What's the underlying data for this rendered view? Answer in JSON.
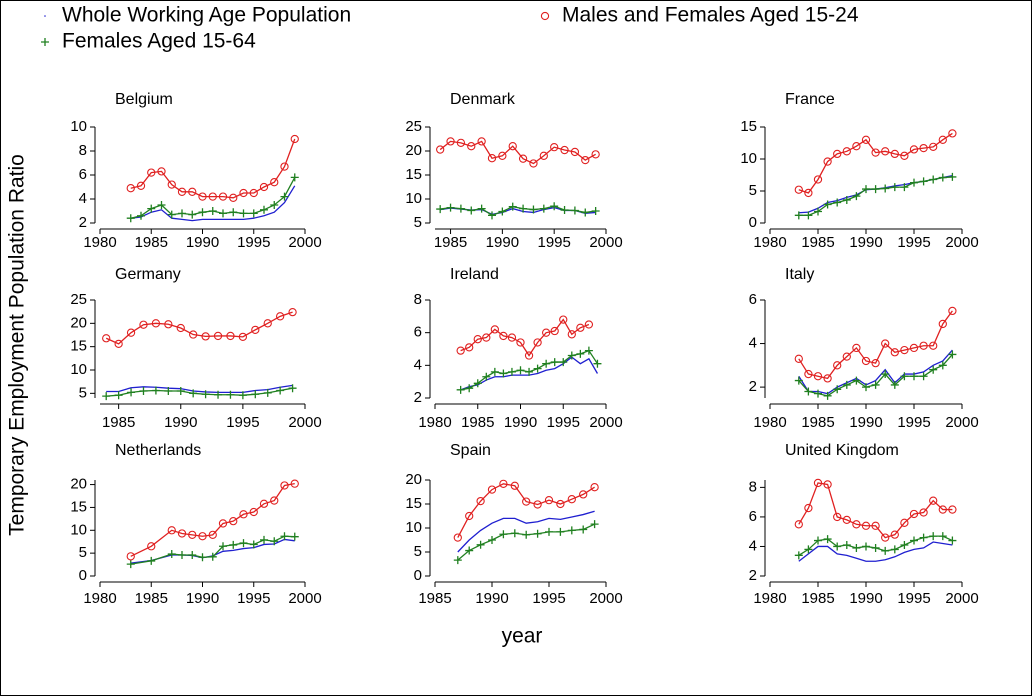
{
  "legend": [
    {
      "name": "Whole Working Age Population",
      "color": "#1f1fd0",
      "marker": "dot"
    },
    {
      "name": "Males and Females Aged 15-24",
      "color": "#e02020",
      "marker": "circle"
    },
    {
      "name": "Females Aged 15-64",
      "color": "#208020",
      "marker": "plus"
    }
  ],
  "ylabel": "Temporary Employment Population Ratio",
  "xlabel": "year",
  "chart_data": [
    {
      "type": "line",
      "title": "Belgium",
      "xlim": [
        1980,
        2000
      ],
      "xticks": [
        1980,
        1985,
        1990,
        1995,
        2000
      ],
      "ylim": [
        2,
        10
      ],
      "yticks": [
        2,
        4,
        6,
        8,
        10
      ],
      "x": [
        1983,
        1984,
        1985,
        1986,
        1987,
        1988,
        1989,
        1990,
        1991,
        1992,
        1993,
        1994,
        1995,
        1996,
        1997,
        1998,
        1999
      ],
      "series": [
        {
          "values": [
            2.4,
            2.5,
            2.9,
            3.1,
            2.4,
            2.3,
            2.2,
            2.3,
            2.3,
            2.3,
            2.3,
            2.3,
            2.4,
            2.6,
            2.9,
            3.7,
            5.1
          ]
        },
        {
          "values": [
            4.9,
            5.1,
            6.2,
            6.3,
            5.2,
            4.6,
            4.6,
            4.2,
            4.2,
            4.2,
            4.1,
            4.5,
            4.5,
            5.0,
            5.4,
            6.7,
            9.0
          ]
        },
        {
          "values": [
            2.4,
            2.6,
            3.2,
            3.5,
            2.7,
            2.8,
            2.7,
            2.9,
            3.0,
            2.8,
            2.9,
            2.8,
            2.8,
            3.1,
            3.5,
            4.2,
            5.8
          ]
        }
      ]
    },
    {
      "type": "line",
      "title": "Denmark",
      "xlim": [
        1983.5,
        2000
      ],
      "xticks": [
        1985,
        1990,
        1995,
        2000
      ],
      "ylim": [
        5,
        25
      ],
      "yticks": [
        5,
        10,
        15,
        20,
        25
      ],
      "x": [
        1984,
        1985,
        1986,
        1987,
        1988,
        1989,
        1990,
        1991,
        1992,
        1993,
        1994,
        1995,
        1996,
        1997,
        1998,
        1999
      ],
      "series": [
        {
          "values": [
            7.8,
            8.1,
            7.9,
            7.7,
            7.8,
            6.8,
            7.2,
            8.0,
            7.4,
            7.2,
            7.8,
            8.2,
            7.6,
            7.6,
            7.0,
            7.2
          ]
        },
        {
          "values": [
            20.3,
            22,
            21.7,
            21,
            22,
            18.5,
            19,
            21,
            18.4,
            17.4,
            19,
            20.8,
            20.2,
            19.8,
            18.1,
            19.3
          ]
        },
        {
          "values": [
            7.9,
            8.2,
            8.0,
            7.6,
            8.0,
            6.6,
            7.4,
            8.4,
            8.0,
            7.8,
            8.0,
            8.5,
            7.7,
            7.6,
            7.2,
            7.5
          ]
        }
      ]
    },
    {
      "type": "line",
      "title": "France",
      "xlim": [
        1980,
        2000
      ],
      "xticks": [
        1980,
        1985,
        1990,
        1995,
        2000
      ],
      "ylim": [
        0,
        15
      ],
      "yticks": [
        0,
        5,
        10,
        15
      ],
      "x": [
        1983,
        1984,
        1985,
        1986,
        1987,
        1988,
        1989,
        1990,
        1991,
        1992,
        1993,
        1994,
        1995,
        1996,
        1997,
        1998,
        1999
      ],
      "series": [
        {
          "values": [
            1.6,
            1.7,
            2.3,
            3.2,
            3.5,
            4.0,
            4.4,
            5.2,
            5.3,
            5.5,
            5.8,
            6.0,
            6.3,
            6.5,
            6.8,
            7.1,
            7.4
          ]
        },
        {
          "values": [
            5.2,
            4.7,
            6.8,
            9.6,
            10.8,
            11.2,
            12,
            13,
            11,
            11.2,
            10.8,
            10.5,
            11.5,
            11.7,
            11.9,
            13,
            14
          ]
        },
        {
          "values": [
            1.2,
            1.2,
            1.8,
            2.9,
            3.2,
            3.6,
            4.2,
            5.3,
            5.3,
            5.4,
            5.6,
            5.6,
            6.3,
            6.5,
            6.8,
            7.1,
            7.2
          ]
        }
      ]
    },
    {
      "type": "line",
      "title": "Germany",
      "xlim": [
        1983.5,
        2000
      ],
      "xticks": [
        1985,
        1990,
        1995,
        2000
      ],
      "ylim": [
        4,
        25
      ],
      "yticks": [
        5,
        10,
        15,
        20,
        25
      ],
      "x": [
        1984,
        1985,
        1986,
        1987,
        1988,
        1989,
        1990,
        1991,
        1992,
        1993,
        1994,
        1995,
        1996,
        1997,
        1998,
        1999
      ],
      "series": [
        {
          "values": [
            5.4,
            5.4,
            6.2,
            6.4,
            6.3,
            6.1,
            6.0,
            5.5,
            5.3,
            5.2,
            5.2,
            5.2,
            5.6,
            5.8,
            6.3,
            6.7
          ]
        },
        {
          "values": [
            16.8,
            15.6,
            18,
            19.7,
            20,
            19.8,
            19,
            17.6,
            17.2,
            17.3,
            17.3,
            17.1,
            18.6,
            20,
            21.5,
            22.4
          ]
        },
        {
          "values": [
            4.4,
            4.6,
            5.2,
            5.5,
            5.6,
            5.5,
            5.5,
            5.0,
            4.8,
            4.7,
            4.7,
            4.6,
            4.8,
            5.1,
            5.6,
            6.1
          ]
        }
      ]
    },
    {
      "type": "line",
      "title": "Ireland",
      "xlim": [
        1980,
        2000
      ],
      "xticks": [
        1980,
        1985,
        1990,
        1995,
        2000
      ],
      "ylim": [
        2,
        8
      ],
      "yticks": [
        2,
        4,
        6,
        8
      ],
      "x": [
        1983,
        1984,
        1985,
        1986,
        1987,
        1988,
        1989,
        1990,
        1991,
        1992,
        1993,
        1994,
        1995,
        1996,
        1997,
        1998,
        1999
      ],
      "series": [
        {
          "values": [
            2.5,
            2.7,
            2.8,
            3.1,
            3.3,
            3.3,
            3.4,
            3.4,
            3.4,
            3.5,
            3.7,
            3.8,
            4.1,
            4.5,
            4.1,
            4.4,
            3.5
          ]
        },
        {
          "values": [
            4.9,
            5.1,
            5.6,
            5.7,
            6.2,
            5.8,
            5.7,
            5.4,
            4.6,
            5.4,
            6.0,
            6.1,
            6.8,
            5.9,
            6.3,
            6.5,
            null
          ]
        },
        {
          "values": [
            2.5,
            2.6,
            2.9,
            3.3,
            3.6,
            3.5,
            3.6,
            3.7,
            3.6,
            3.8,
            4.1,
            4.2,
            4.2,
            4.6,
            4.7,
            4.9,
            4.1
          ]
        }
      ]
    },
    {
      "type": "line",
      "title": "Italy",
      "xlim": [
        1980,
        2000
      ],
      "xticks": [
        1980,
        1985,
        1990,
        1995,
        2000
      ],
      "ylim": [
        1.5,
        6
      ],
      "yticks": [
        2,
        4,
        6
      ],
      "x": [
        1983,
        1984,
        1985,
        1986,
        1987,
        1988,
        1989,
        1990,
        1991,
        1992,
        1993,
        1994,
        1995,
        1996,
        1997,
        1998,
        1999
      ],
      "series": [
        {
          "values": [
            2.5,
            1.8,
            1.8,
            1.7,
            2.0,
            2.2,
            2.4,
            2.1,
            2.3,
            2.8,
            2.2,
            2.6,
            2.6,
            2.7,
            3.0,
            3.2,
            3.7
          ]
        },
        {
          "values": [
            3.3,
            2.6,
            2.5,
            2.4,
            3.0,
            3.4,
            3.8,
            3.2,
            3.1,
            4.0,
            3.6,
            3.7,
            3.8,
            3.9,
            3.9,
            4.9,
            5.5
          ]
        },
        {
          "values": [
            2.3,
            1.8,
            1.7,
            1.6,
            1.9,
            2.1,
            2.3,
            2.0,
            2.1,
            2.6,
            2.1,
            2.5,
            2.5,
            2.5,
            2.8,
            3.0,
            3.5
          ]
        }
      ]
    },
    {
      "type": "line",
      "title": "Netherlands",
      "xlim": [
        1980,
        2000
      ],
      "xticks": [
        1980,
        1985,
        1990,
        1995,
        2000
      ],
      "ylim": [
        0,
        21
      ],
      "yticks": [
        0,
        5,
        10,
        15,
        20
      ],
      "x": [
        1983,
        1985,
        1987,
        1988,
        1989,
        1990,
        1991,
        1992,
        1993,
        1994,
        1995,
        1996,
        1997,
        1998,
        1999
      ],
      "series": [
        {
          "values": [
            2.8,
            3.4,
            4.6,
            4.6,
            4.5,
            4.0,
            4.4,
            5.4,
            5.6,
            6.0,
            6.2,
            6.9,
            7.0,
            8.0,
            7.7
          ]
        },
        {
          "values": [
            4.3,
            6.5,
            10,
            9.3,
            9,
            8.7,
            9,
            11.5,
            12,
            13.5,
            14,
            15.8,
            16.5,
            19.8,
            20.2
          ]
        },
        {
          "values": [
            2.6,
            3.3,
            4.8,
            4.6,
            4.6,
            4.1,
            4.2,
            6.5,
            6.8,
            7.2,
            6.9,
            7.9,
            7.6,
            8.7,
            8.6
          ]
        }
      ]
    },
    {
      "type": "line",
      "title": "Spain",
      "xlim": [
        1985,
        2000
      ],
      "xticks": [
        1985,
        1990,
        1995,
        2000
      ],
      "ylim": [
        0,
        20
      ],
      "yticks": [
        0,
        5,
        10,
        15,
        20
      ],
      "x": [
        1987,
        1988,
        1989,
        1990,
        1991,
        1992,
        1993,
        1994,
        1995,
        1996,
        1997,
        1998,
        1999
      ],
      "series": [
        {
          "values": [
            5,
            7.5,
            9.5,
            11,
            12,
            12,
            11,
            11.3,
            12,
            11.8,
            12.3,
            12.8,
            13.5
          ]
        },
        {
          "values": [
            8,
            12.5,
            15.6,
            18,
            19.2,
            18.8,
            15.5,
            14.9,
            15.8,
            15,
            16,
            17,
            18.5
          ]
        },
        {
          "values": [
            3.3,
            5.3,
            6.5,
            7.5,
            8.7,
            8.9,
            8.6,
            8.8,
            9.2,
            9.2,
            9.5,
            9.7,
            10.8
          ]
        }
      ]
    },
    {
      "type": "line",
      "title": "United Kingdom",
      "xlim": [
        1980,
        2000
      ],
      "xticks": [
        1980,
        1985,
        1990,
        1995,
        2000
      ],
      "ylim": [
        2,
        8.5
      ],
      "yticks": [
        2,
        4,
        6,
        8
      ],
      "x": [
        1983,
        1984,
        1985,
        1986,
        1987,
        1988,
        1989,
        1990,
        1991,
        1992,
        1993,
        1994,
        1995,
        1996,
        1997,
        1998,
        1999
      ],
      "series": [
        {
          "values": [
            3.0,
            3.5,
            4.0,
            4.0,
            3.5,
            3.4,
            3.2,
            3.0,
            3.0,
            3.1,
            3.3,
            3.6,
            3.8,
            3.9,
            4.3,
            4.2,
            4.1
          ]
        },
        {
          "values": [
            5.5,
            6.6,
            8.3,
            8.2,
            6.0,
            5.8,
            5.5,
            5.4,
            5.4,
            4.6,
            4.8,
            5.6,
            6.2,
            6.3,
            7.1,
            6.5,
            6.5
          ]
        },
        {
          "values": [
            3.4,
            3.8,
            4.4,
            4.5,
            4.0,
            4.1,
            3.9,
            4.0,
            3.9,
            3.7,
            3.8,
            4.1,
            4.4,
            4.6,
            4.7,
            4.7,
            4.4
          ]
        }
      ]
    }
  ]
}
